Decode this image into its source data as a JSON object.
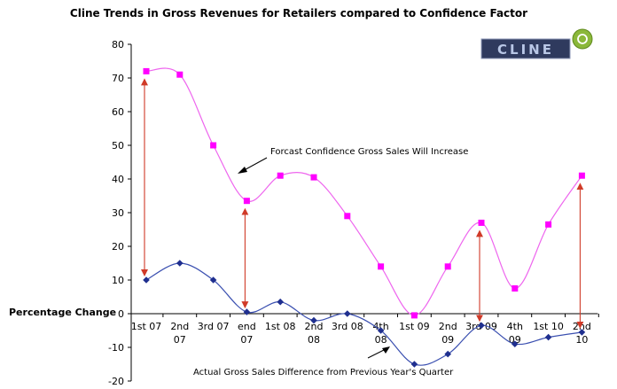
{
  "chart_data": {
    "type": "line",
    "title": "Cline Trends in Gross Revenues for Retailers compared to Confidence Factor",
    "ylabel": "Percentage Change",
    "xlabel": "",
    "ylim": [
      -20,
      80
    ],
    "yticks": [
      -20,
      -10,
      0,
      10,
      20,
      30,
      40,
      50,
      60,
      70,
      80
    ],
    "categories": [
      [
        "1st 07"
      ],
      [
        "2nd",
        "07"
      ],
      [
        "3rd 07"
      ],
      [
        "end",
        "07"
      ],
      [
        "1st 08"
      ],
      [
        "2nd",
        "08"
      ],
      [
        "3rd 08"
      ],
      [
        "4th",
        "08"
      ],
      [
        "1st 09"
      ],
      [
        "2nd",
        "09"
      ],
      [
        "3rd 09"
      ],
      [
        "4th",
        "09"
      ],
      [
        "1st 10"
      ],
      [
        "2nd",
        "10"
      ]
    ],
    "series": [
      {
        "name": "Forcast Confidence Gross Sales Will Increase",
        "color": "#ff00ff",
        "marker": "square",
        "values": [
          72,
          71,
          50,
          33.5,
          41,
          40.5,
          29,
          14,
          -0.5,
          14,
          27,
          7.5,
          26.5,
          41
        ]
      },
      {
        "name": "Actual Gross Sales Difference from Previous Year's Quarter",
        "color": "#1f2f8f",
        "marker": "diamond",
        "values": [
          10,
          15,
          10,
          0.5,
          3.5,
          -2,
          0,
          -5,
          -15,
          -12,
          -3.5,
          -9,
          -7,
          -5.5
        ]
      }
    ],
    "gap_arrows": [
      0,
      3,
      10,
      13
    ],
    "annotations": {
      "confidence": "Forcast Confidence Gross Sales Will Increase",
      "actual": "Actual Gross Sales Difference from Previous Year's Quarter"
    }
  },
  "logo": {
    "text": "CLINE"
  },
  "colors": {
    "axis": "#000000",
    "arrow": "#d03a28"
  }
}
